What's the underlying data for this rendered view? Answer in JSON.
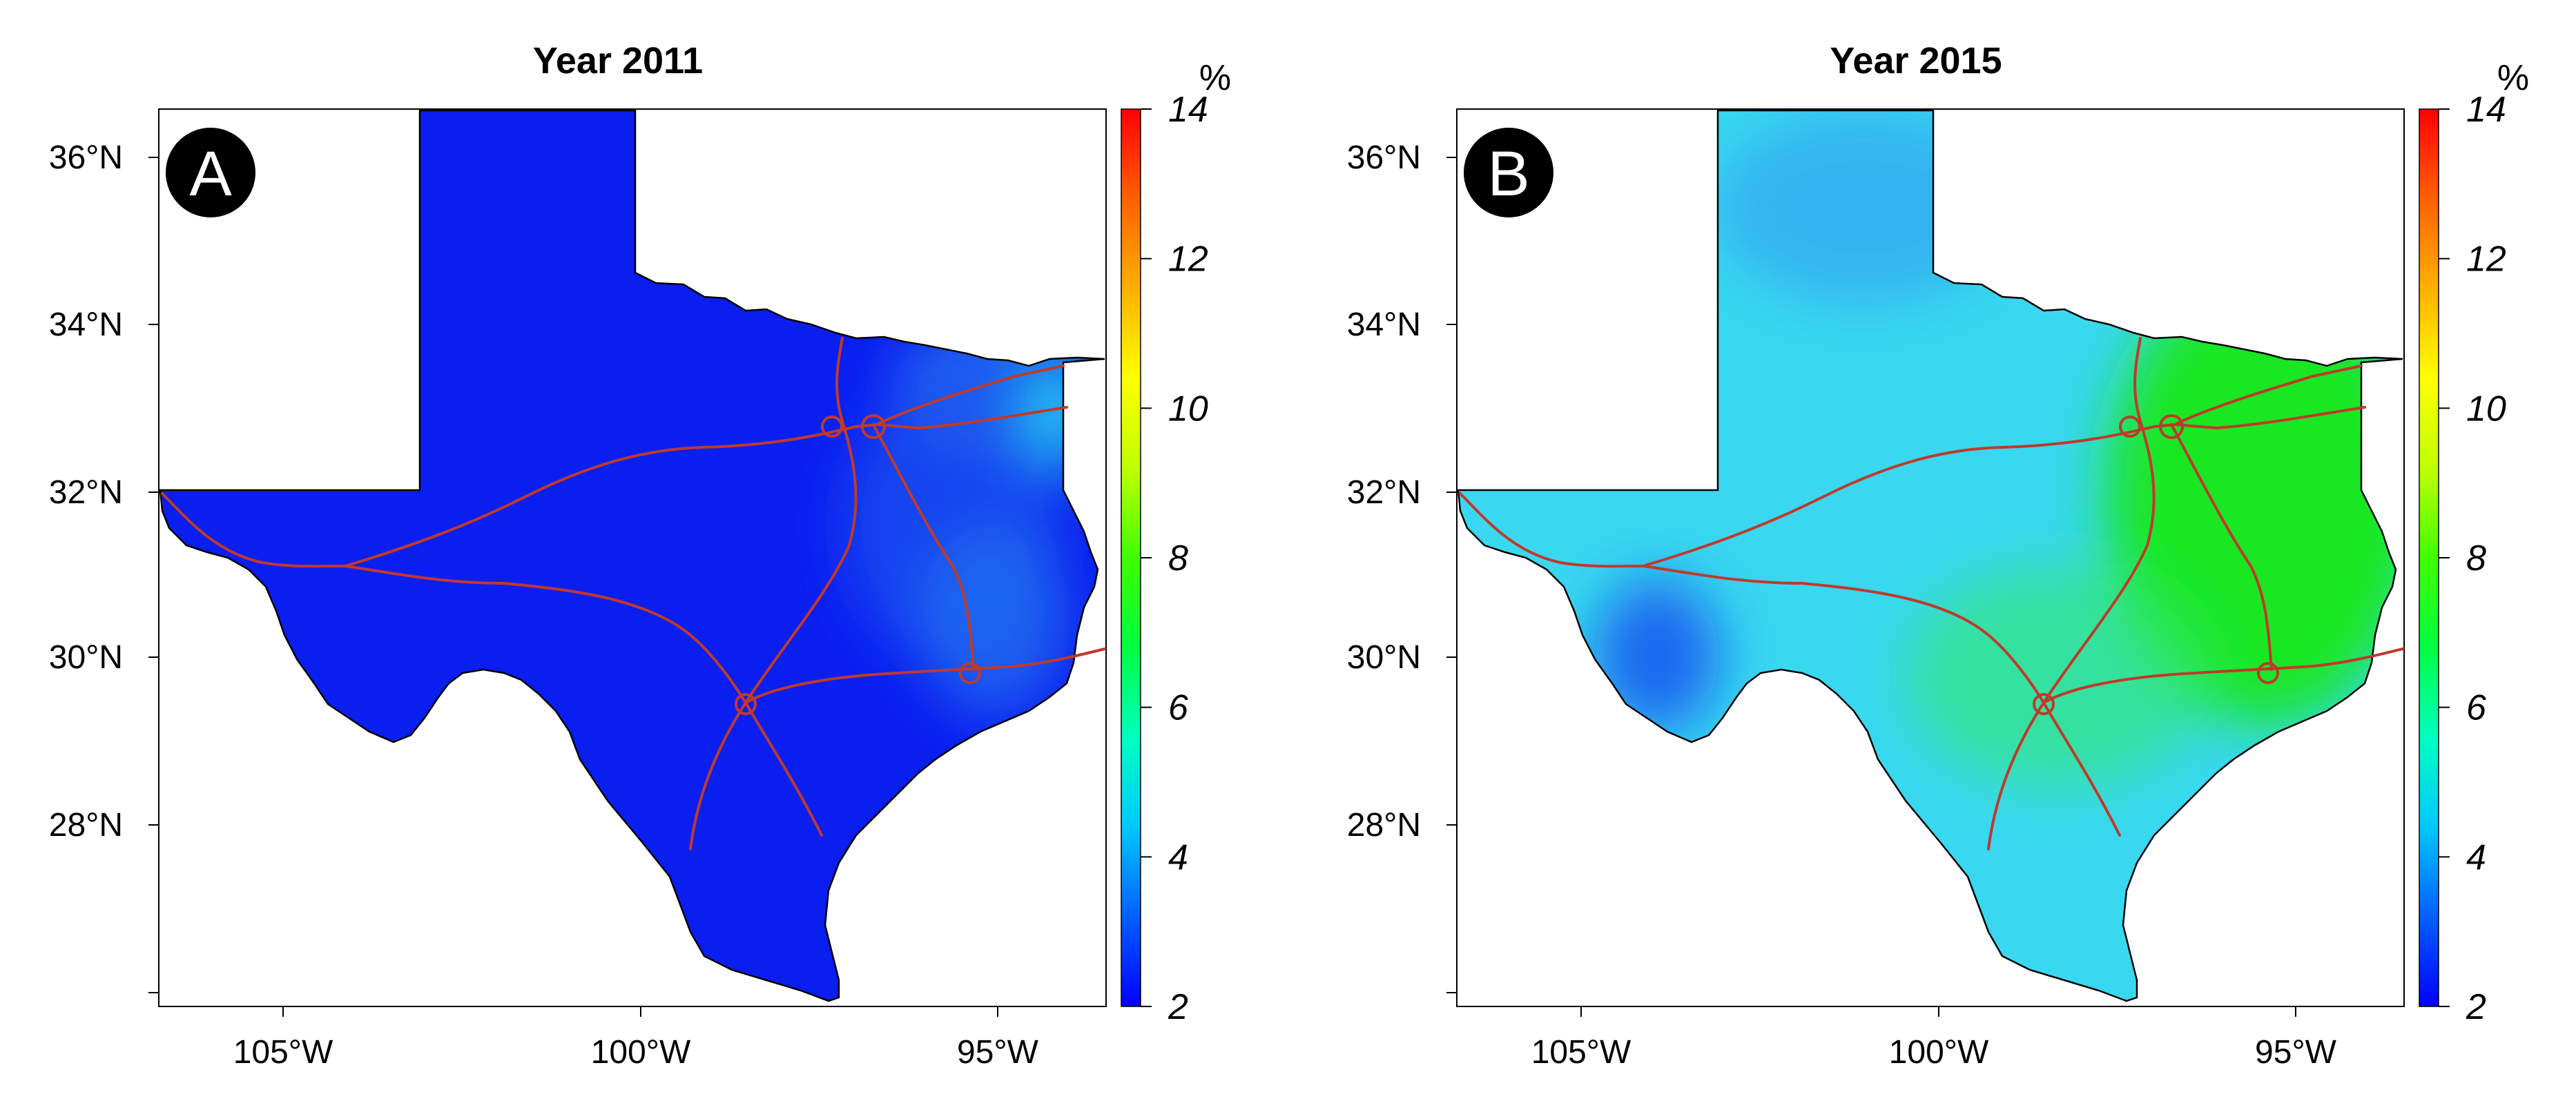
{
  "panels": [
    {
      "id": "A",
      "badge": "A",
      "title": "Year 2011",
      "fill_color": "#0a1ef0",
      "variation": [
        {
          "name": "northeast",
          "color": "#1f68f0"
        },
        {
          "name": "east-central",
          "color": "#1a55f0"
        },
        {
          "name": "coast",
          "color": "#1f70f0"
        },
        {
          "name": "far-east-cyan",
          "color": "#22c8f0"
        }
      ]
    },
    {
      "id": "B",
      "badge": "B",
      "title": "Year 2015",
      "fill_color": "#39d8f0",
      "variation": [
        {
          "name": "east-green",
          "color": "#14e814"
        },
        {
          "name": "central-green",
          "color": "#33e86a"
        },
        {
          "name": "west-blue",
          "color": "#2a8af0"
        },
        {
          "name": "southwest-dark",
          "color": "#1540f0"
        }
      ]
    }
  ],
  "axes": {
    "lat_ticks": [
      "36°N",
      "34°N",
      "32°N",
      "30°N",
      "28°N"
    ],
    "lon_ticks": [
      "105°W",
      "100°W",
      "95°W"
    ]
  },
  "colorbar": {
    "unit": "%",
    "ticks": [
      "14",
      "12",
      "10",
      "8",
      "6",
      "4",
      "2"
    ],
    "range": [
      2,
      14
    ],
    "colors": [
      "#0000ff",
      "#0060ff",
      "#00c8ff",
      "#00ffc0",
      "#00ff40",
      "#40ff00",
      "#c0ff00",
      "#ffff00",
      "#ffb000",
      "#ff6000",
      "#ff0000"
    ]
  },
  "overlay": {
    "road_color": "#c0392b",
    "border_color": "#000000"
  }
}
